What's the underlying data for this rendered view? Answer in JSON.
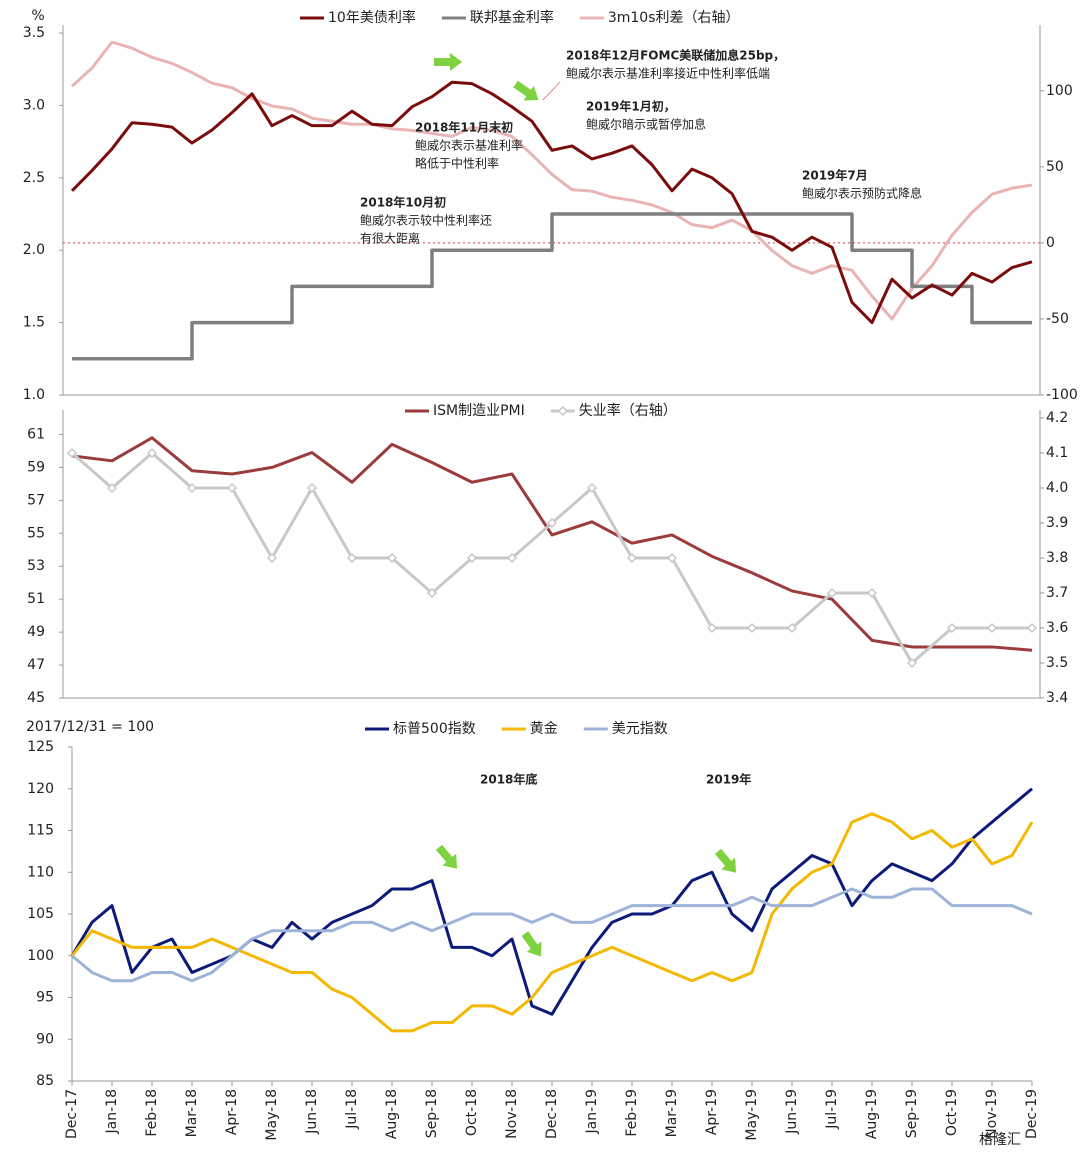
{
  "chart_data": [
    {
      "type": "line",
      "y_label": "%",
      "ylim": [
        1.0,
        3.5
      ],
      "yticks": [
        {
          "value": 1.0,
          "label": "1.0"
        },
        1.5,
        {
          "value": 2.0,
          "label": "2.0"
        },
        2.5,
        {
          "value": 3.0,
          "label": "3.0"
        },
        3.5
      ],
      "y2lim": [
        -100,
        138
      ],
      "y2ticks": [
        -100,
        -50,
        0,
        50,
        100
      ],
      "grid": false,
      "legend": "top",
      "hlines": [
        {
          "value": 0,
          "axis": "y2",
          "color": "#e06060"
        }
      ],
      "series": [
        {
          "name": "10年美债利率",
          "color": "#7b0c0c",
          "values": [
            2.41,
            2.55,
            2.7,
            2.88,
            2.87,
            2.85,
            2.74,
            2.83,
            2.95,
            3.08,
            2.86,
            2.93,
            2.86,
            2.86,
            2.96,
            2.87,
            2.86,
            2.99,
            3.06,
            3.16,
            3.15,
            3.08,
            2.99,
            2.89,
            2.69,
            2.72,
            2.63,
            2.67,
            2.72,
            2.59,
            2.41,
            2.56,
            2.5,
            2.39,
            2.13,
            2.09,
            2.0,
            2.09,
            2.02,
            1.64,
            1.5,
            1.8,
            1.67,
            1.76,
            1.69,
            1.84,
            1.78,
            1.88,
            1.92
          ]
        },
        {
          "name": "联邦基金利率",
          "color": "#7f7f7f",
          "step": true,
          "values": [
            1.25,
            1.25,
            1.25,
            1.25,
            1.25,
            1.25,
            1.5,
            1.5,
            1.5,
            1.5,
            1.5,
            1.75,
            1.75,
            1.75,
            1.75,
            1.75,
            1.75,
            1.75,
            2.0,
            2.0,
            2.0,
            2.0,
            2.0,
            2.0,
            2.25,
            2.25,
            2.25,
            2.25,
            2.25,
            2.25,
            2.25,
            2.25,
            2.25,
            2.25,
            2.25,
            2.25,
            2.25,
            2.25,
            2.25,
            2.0,
            2.0,
            2.0,
            1.75,
            1.75,
            1.75,
            1.5,
            1.5,
            1.5,
            1.5
          ]
        },
        {
          "name": "3m10s利差（右轴）",
          "color": "#e8b4b4",
          "axis": "y2",
          "values": [
            103,
            115,
            132,
            128,
            122,
            118,
            112,
            105,
            102,
            95,
            90,
            88,
            82,
            80,
            78,
            78,
            75,
            74,
            72,
            70,
            76,
            74,
            70,
            58,
            45,
            35,
            34,
            30,
            28,
            25,
            20,
            12,
            10,
            15,
            8,
            -5,
            -15,
            -20,
            -15,
            -18,
            -35,
            -50,
            -30,
            -15,
            5,
            20,
            32,
            36,
            38
          ]
        }
      ],
      "annotations": [
        [
          "2018年12月FOMC美联储加息25bp，",
          "鲍威尔表示基准利率接近中性利率低端"
        ],
        [
          "2019年1月初，",
          "鲍威尔暗示或暂停加息"
        ],
        [
          "2018年11月末初",
          "鲍威尔表示基准利率",
          "略低于中性利率"
        ],
        [
          "2018年10月初",
          "鲍威尔表示较中性利率还",
          "有很大距离"
        ],
        [
          "2019年7月",
          "鲍威尔表示预防式降息"
        ]
      ]
    },
    {
      "type": "line",
      "ylim": [
        45,
        62
      ],
      "yticks": [
        45,
        47,
        49,
        51,
        53,
        55,
        57,
        59,
        61
      ],
      "y2lim": [
        3.4,
        4.2
      ],
      "y2ticks": [
        3.4,
        3.5,
        3.6,
        3.7,
        3.8,
        3.9,
        {
          "value": 4.0,
          "label": "4.0"
        },
        4.1,
        4.2
      ],
      "grid": false,
      "legend": "top",
      "series": [
        {
          "name": "ISM制造业PMI",
          "color": "#9b3b3b",
          "values": [
            59.7,
            59.4,
            60.8,
            58.8,
            58.6,
            59.0,
            59.9,
            58.1,
            60.4,
            59.3,
            58.1,
            58.6,
            54.9,
            55.7,
            54.4,
            54.9,
            53.6,
            52.6,
            51.5,
            51.0,
            48.5,
            48.1,
            48.1,
            48.1,
            47.9
          ]
        },
        {
          "name": "失业率（右轴）",
          "color": "#c8c8c8",
          "axis": "y2",
          "marker": "diamond",
          "values": [
            4.1,
            4.0,
            4.1,
            4.0,
            4.0,
            3.8,
            4.0,
            3.8,
            3.8,
            3.7,
            3.8,
            3.8,
            3.9,
            4.0,
            3.8,
            3.8,
            3.6,
            3.6,
            3.6,
            3.7,
            3.7,
            3.5,
            3.6,
            3.6,
            3.6
          ]
        }
      ]
    },
    {
      "type": "line",
      "subtitle": "2017/12/31 = 100",
      "categories": [
        "Dec-17",
        null,
        "Jan-18",
        null,
        "Feb-18",
        null,
        "Mar-18",
        null,
        "Apr-18",
        null,
        "May-18",
        null,
        "Jun-18",
        null,
        "Jul-18",
        null,
        "Aug-18",
        null,
        "Sep-18",
        null,
        "Oct-18",
        null,
        "Nov-18",
        null,
        "Dec-18",
        null,
        "Jan-19",
        null,
        "Feb-19",
        null,
        "Mar-19",
        null,
        "Apr-19",
        null,
        "May-19",
        null,
        "Jun-19",
        null,
        "Jul-19",
        null,
        "Aug-19",
        null,
        "Sep-19",
        null,
        "Oct-19",
        null,
        "Nov-19",
        null,
        "Dec-19"
      ],
      "ylim": [
        85,
        125
      ],
      "yticks": [
        85,
        90,
        95,
        100,
        105,
        110,
        115,
        120,
        125
      ],
      "grid": false,
      "legend": "top",
      "series": [
        {
          "name": "标普500指数",
          "color": "#0c1a7a",
          "values": [
            100,
            104,
            106,
            98,
            101,
            102,
            98,
            99,
            100,
            102,
            101,
            104,
            102,
            104,
            105,
            106,
            108,
            108,
            109,
            101,
            101,
            100,
            102,
            94,
            93,
            97,
            101,
            104,
            105,
            105,
            106,
            109,
            110,
            105,
            103,
            108,
            110,
            112,
            111,
            106,
            109,
            111,
            110,
            109,
            111,
            114,
            116,
            118,
            120
          ]
        },
        {
          "name": "黄金",
          "color": "#f5b800",
          "values": [
            100,
            103,
            102,
            101,
            101,
            101,
            101,
            102,
            101,
            100,
            99,
            98,
            98,
            96,
            95,
            93,
            91,
            91,
            92,
            92,
            94,
            94,
            93,
            95,
            98,
            99,
            100,
            101,
            100,
            99,
            98,
            97,
            98,
            97,
            98,
            105,
            108,
            110,
            111,
            116,
            117,
            116,
            114,
            115,
            113,
            114,
            111,
            112,
            116
          ]
        },
        {
          "name": "美元指数",
          "color": "#9db3d8",
          "values": [
            100,
            98,
            97,
            97,
            98,
            98,
            97,
            98,
            100,
            102,
            103,
            103,
            103,
            103,
            104,
            104,
            103,
            104,
            103,
            104,
            105,
            105,
            105,
            104,
            105,
            104,
            104,
            105,
            106,
            106,
            106,
            106,
            106,
            106,
            107,
            106,
            106,
            106,
            107,
            108,
            107,
            107,
            108,
            108,
            106,
            106,
            106,
            106,
            105
          ]
        }
      ],
      "annotations": [
        [
          "2018年底"
        ],
        [
          "2019年"
        ]
      ],
      "watermark": "格隆汇"
    }
  ]
}
